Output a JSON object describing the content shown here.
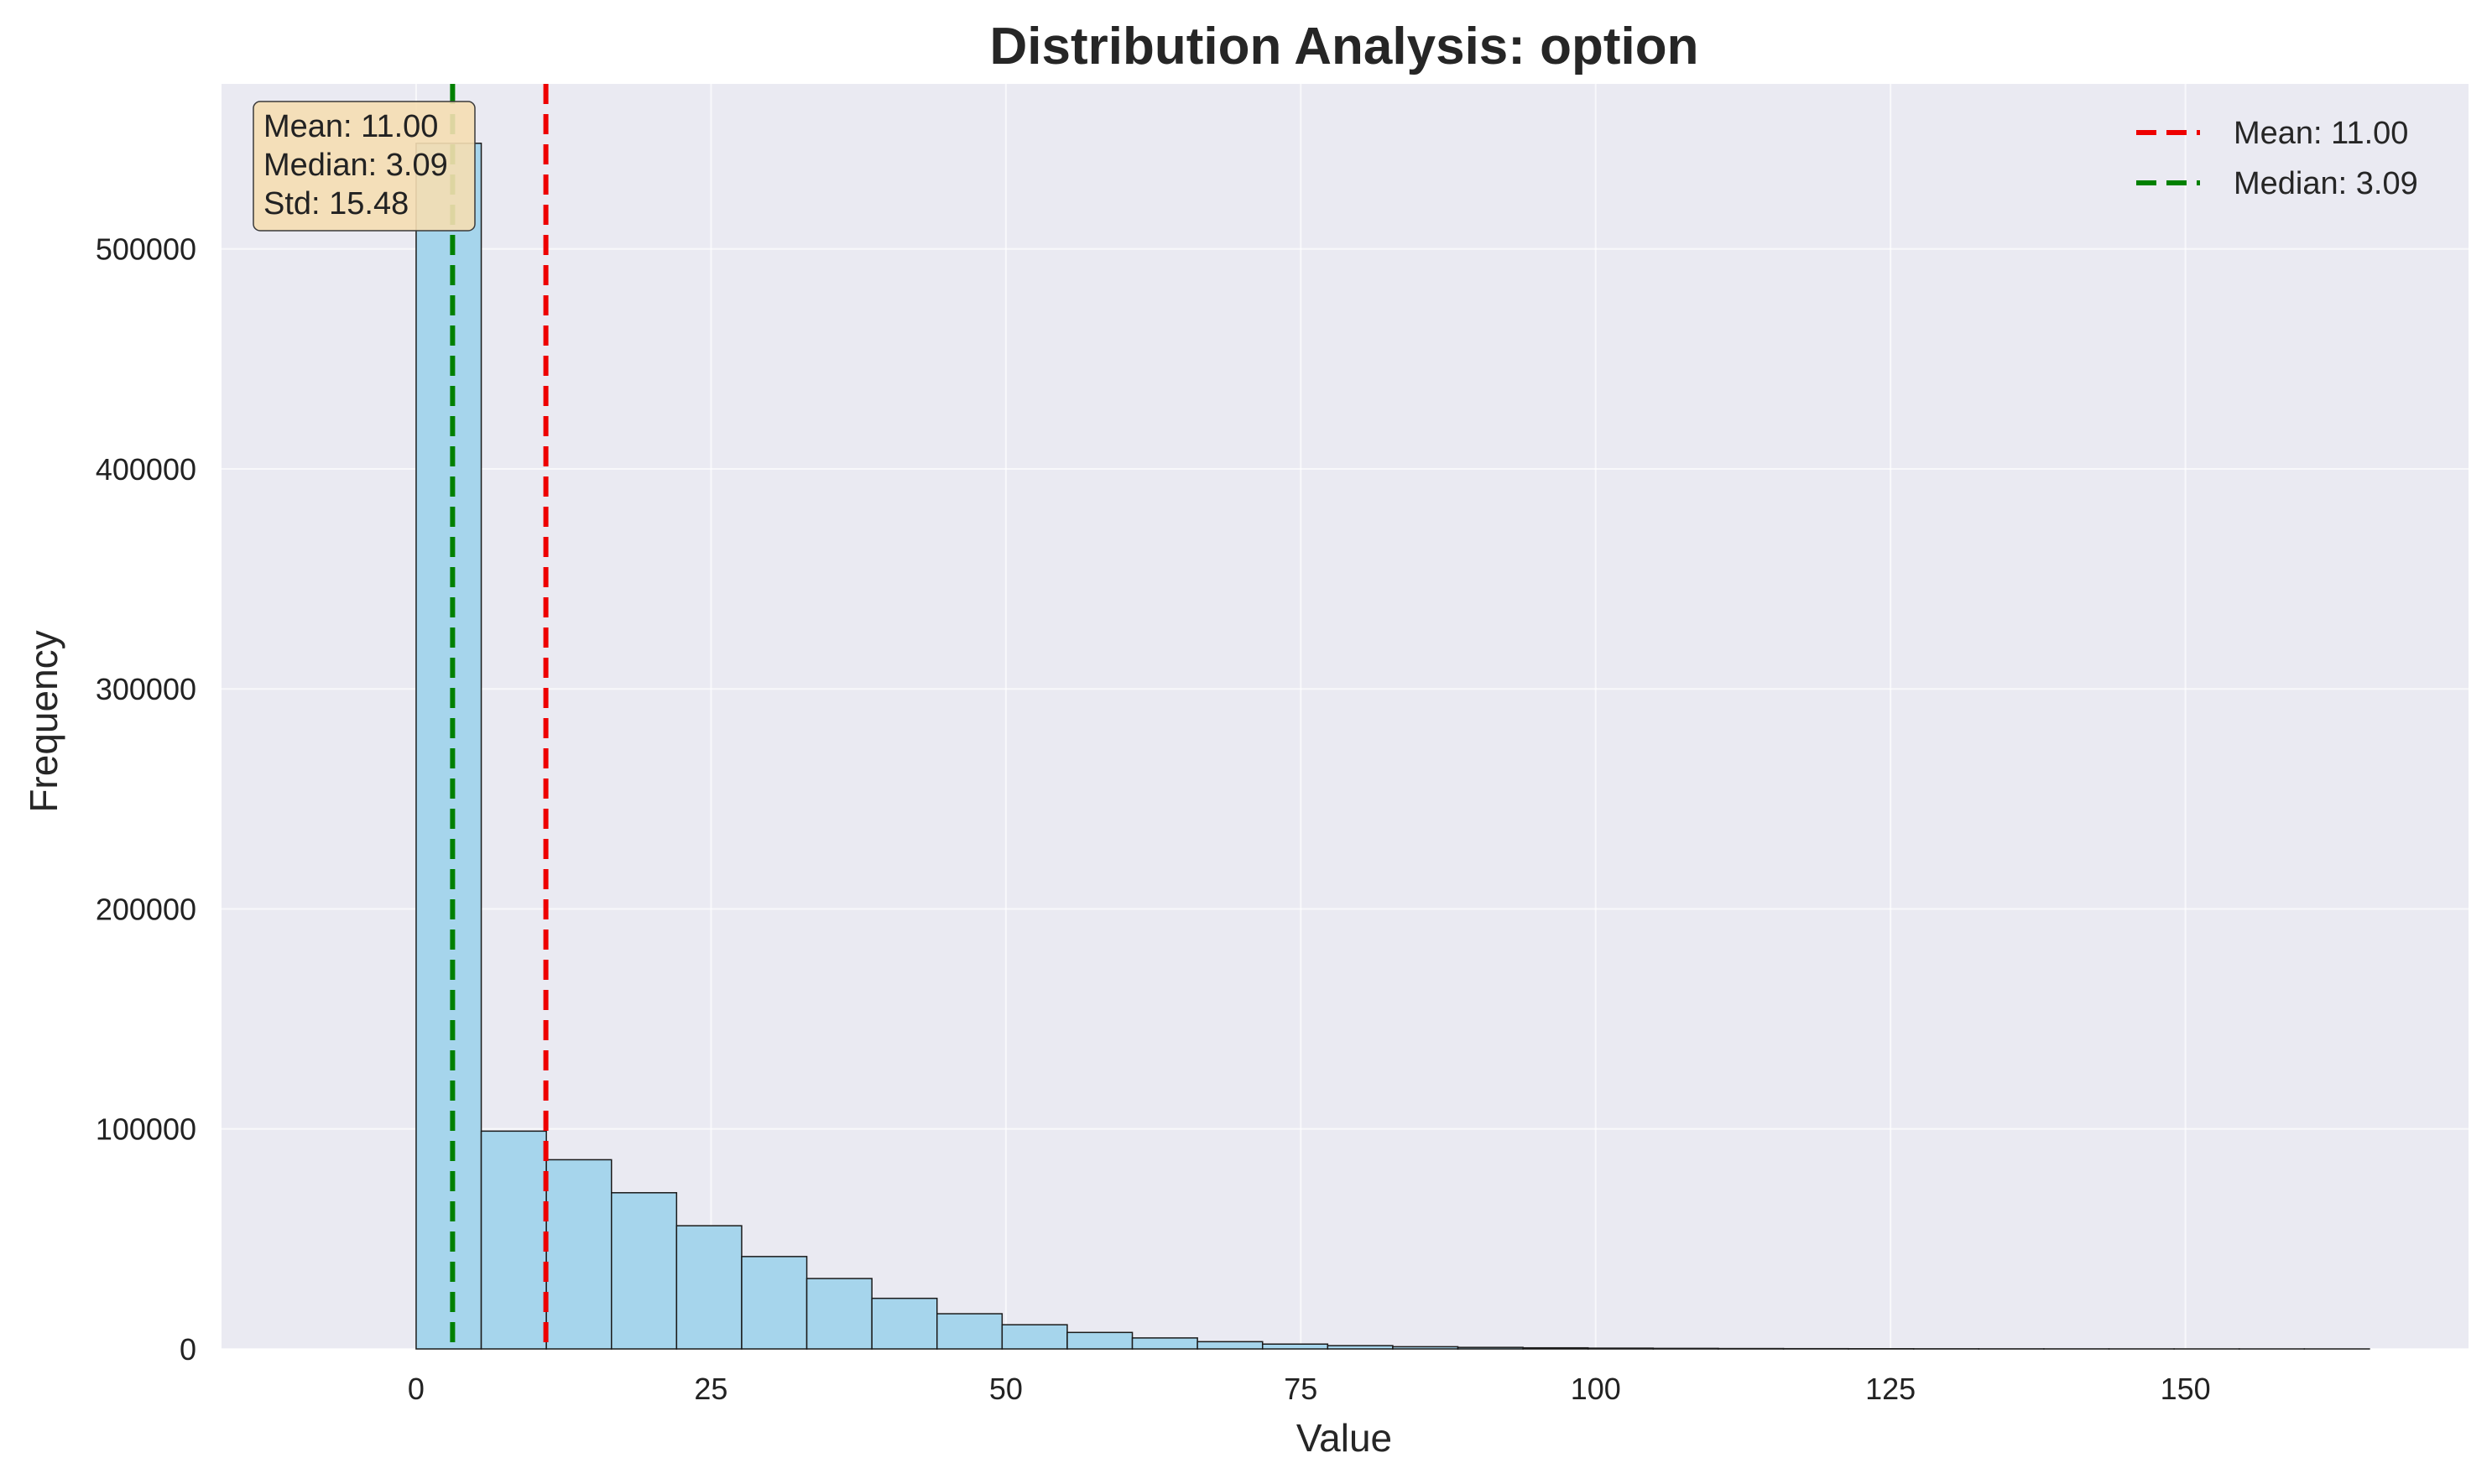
{
  "chart_data": {
    "type": "bar",
    "title": "Distribution Analysis: option",
    "xlabel": "Value",
    "ylabel": "Frequency",
    "xlim": [
      -16.5,
      174
    ],
    "ylim": [
      0,
      575000
    ],
    "xticks": [
      0,
      25,
      50,
      75,
      100,
      125,
      150
    ],
    "yticks": [
      0,
      100000,
      200000,
      300000,
      400000,
      500000
    ],
    "grid": true,
    "bar_color": "#a6d5ec",
    "bar_edge_color": "#1a1a1a",
    "bins": {
      "start": 0,
      "width": 5.52,
      "values": [
        548000,
        99000,
        86000,
        71000,
        56000,
        42000,
        32000,
        23000,
        16000,
        11000,
        7500,
        5000,
        3300,
        2200,
        1500,
        1000,
        700,
        500,
        350,
        250,
        170,
        120,
        90,
        60,
        40,
        30,
        20,
        15,
        10,
        8
      ]
    },
    "reference_lines": [
      {
        "name": "Mean: 11.00",
        "x": 11.0,
        "color": "#ee0000"
      },
      {
        "name": "Median: 3.09",
        "x": 3.09,
        "color": "#008000"
      }
    ],
    "legend_position": "top-right",
    "stats_box": {
      "lines": [
        "Mean: 11.00",
        "Median: 3.09",
        "Std: 15.48"
      ],
      "background": "#f5deb3",
      "position": "top-left"
    }
  }
}
